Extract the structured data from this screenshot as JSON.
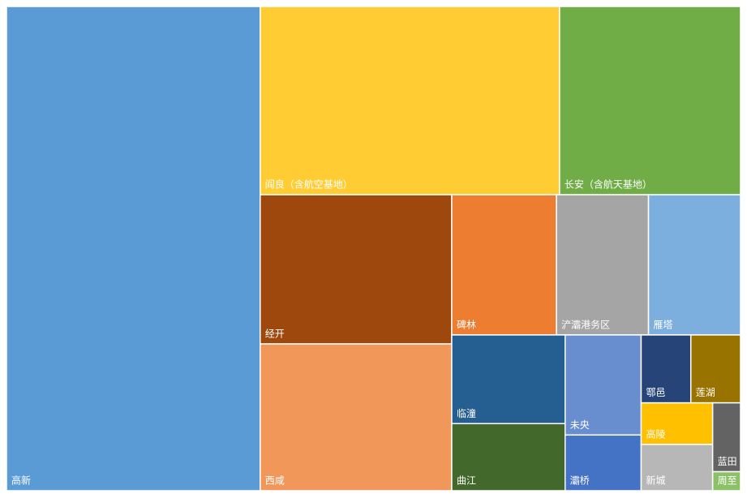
{
  "chart_data": {
    "type": "treemap",
    "categories": [
      "高新",
      "阎良（含航空基地）",
      "长安（含航天基地）",
      "经开",
      "西咸",
      "碑林",
      "浐灞港务区",
      "雁塔",
      "临潼",
      "曲江",
      "未央",
      "灞桥",
      "鄠邑",
      "莲湖",
      "高陵",
      "新城",
      "蓝田",
      "周至"
    ],
    "values": [
      1857,
      852,
      515,
      432,
      425,
      222,
      195,
      195,
      152,
      115,
      115,
      64,
      51,
      51,
      45,
      50,
      29,
      8
    ],
    "colors": [
      "#5b9bd5",
      "#ffcd33",
      "#70ad47",
      "#9e480e",
      "#f1975a",
      "#ed7d31",
      "#a5a5a5",
      "#7cafdd",
      "#255e91",
      "#43682b",
      "#698ed0",
      "#4472c4",
      "#264478",
      "#997300",
      "#ffc000",
      "#b7b7b7",
      "#636363",
      "#8cc168"
    ]
  }
}
